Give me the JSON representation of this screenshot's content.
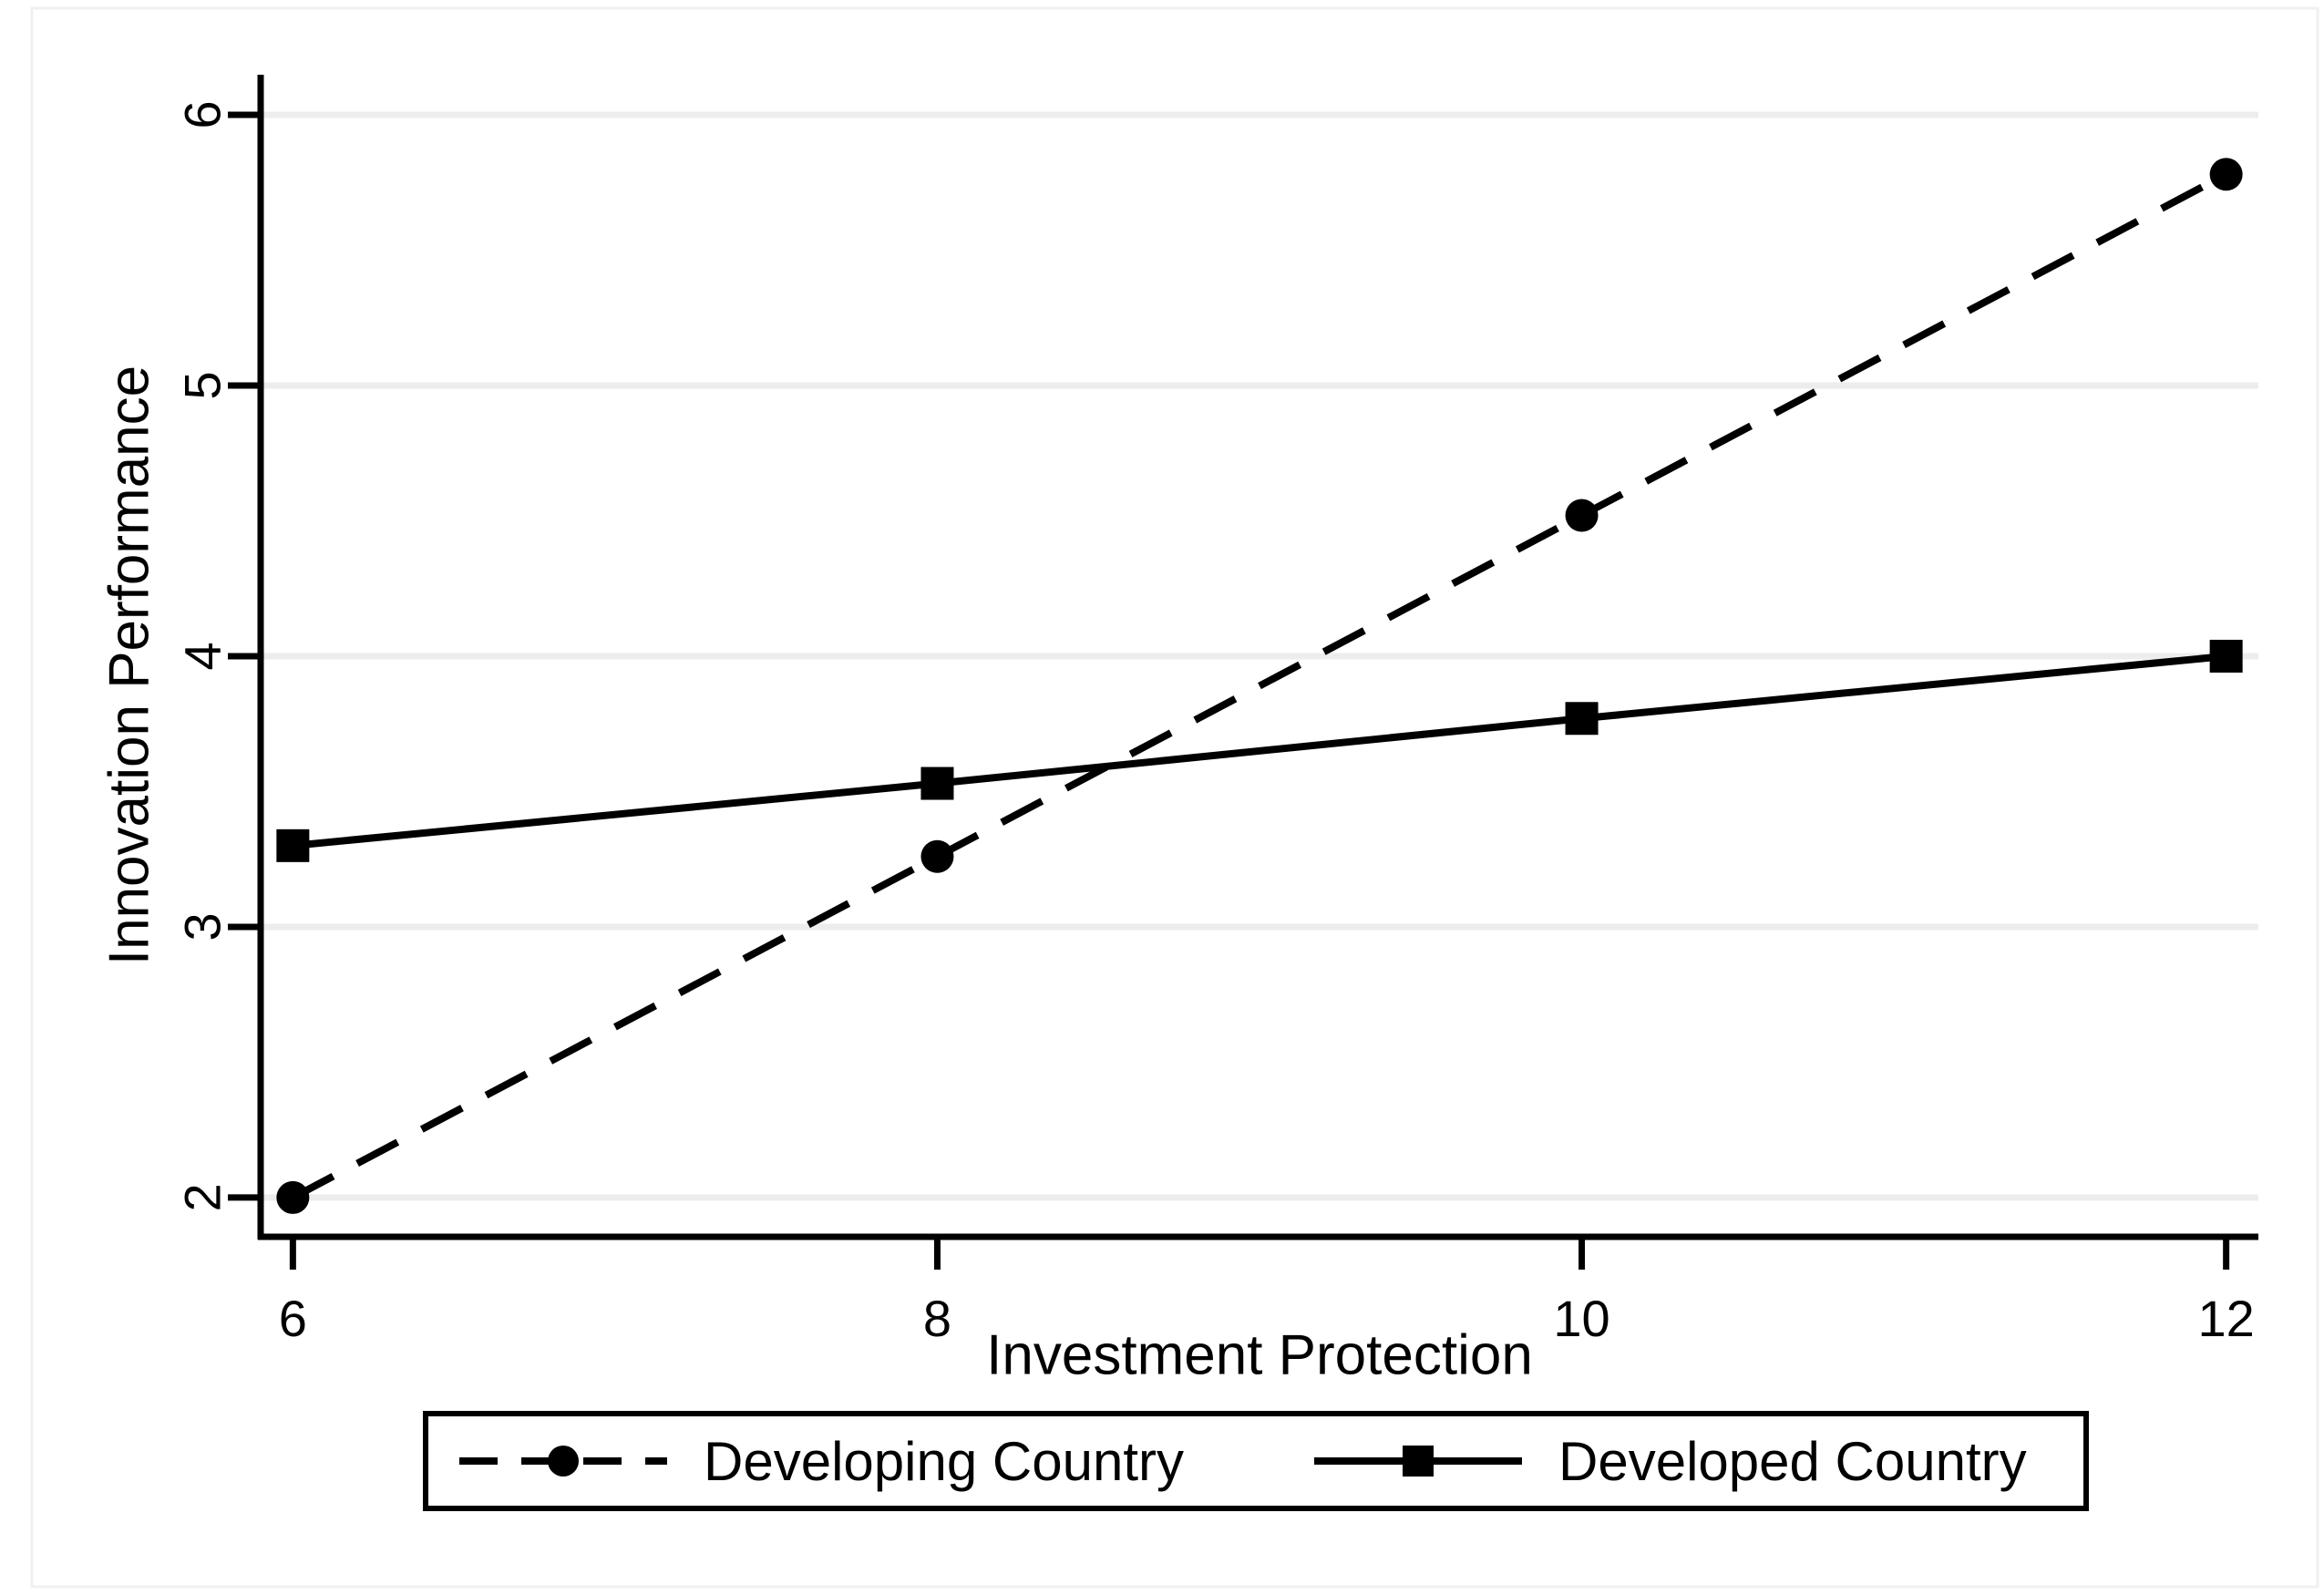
{
  "chart_data": {
    "type": "line",
    "xlabel": "Investment Protection",
    "ylabel": "Innovation Performance",
    "x": [
      6,
      8,
      10,
      12
    ],
    "x_ticks": [
      "6",
      "8",
      "10",
      "12"
    ],
    "y_ticks": [
      "2",
      "3",
      "4",
      "5",
      "6"
    ],
    "y_tick_values": [
      2,
      3,
      4,
      5,
      6
    ],
    "xlim": [
      5.9,
      12.1
    ],
    "ylim": [
      1.855,
      6.148
    ],
    "grid": true,
    "legend_position": "bottom",
    "series": [
      {
        "name": "Developing Country",
        "marker": "circle",
        "line_style": "dashed",
        "values": [
          2.0,
          3.26,
          4.52,
          5.78
        ]
      },
      {
        "name": "Developed Country",
        "marker": "square",
        "line_style": "solid",
        "values": [
          3.3,
          3.53,
          3.77,
          4.0
        ]
      }
    ],
    "colors": {
      "line": "#000000",
      "grid": "#ededed",
      "background": "#ffffff",
      "figure_border": "#f0f0f0"
    }
  }
}
